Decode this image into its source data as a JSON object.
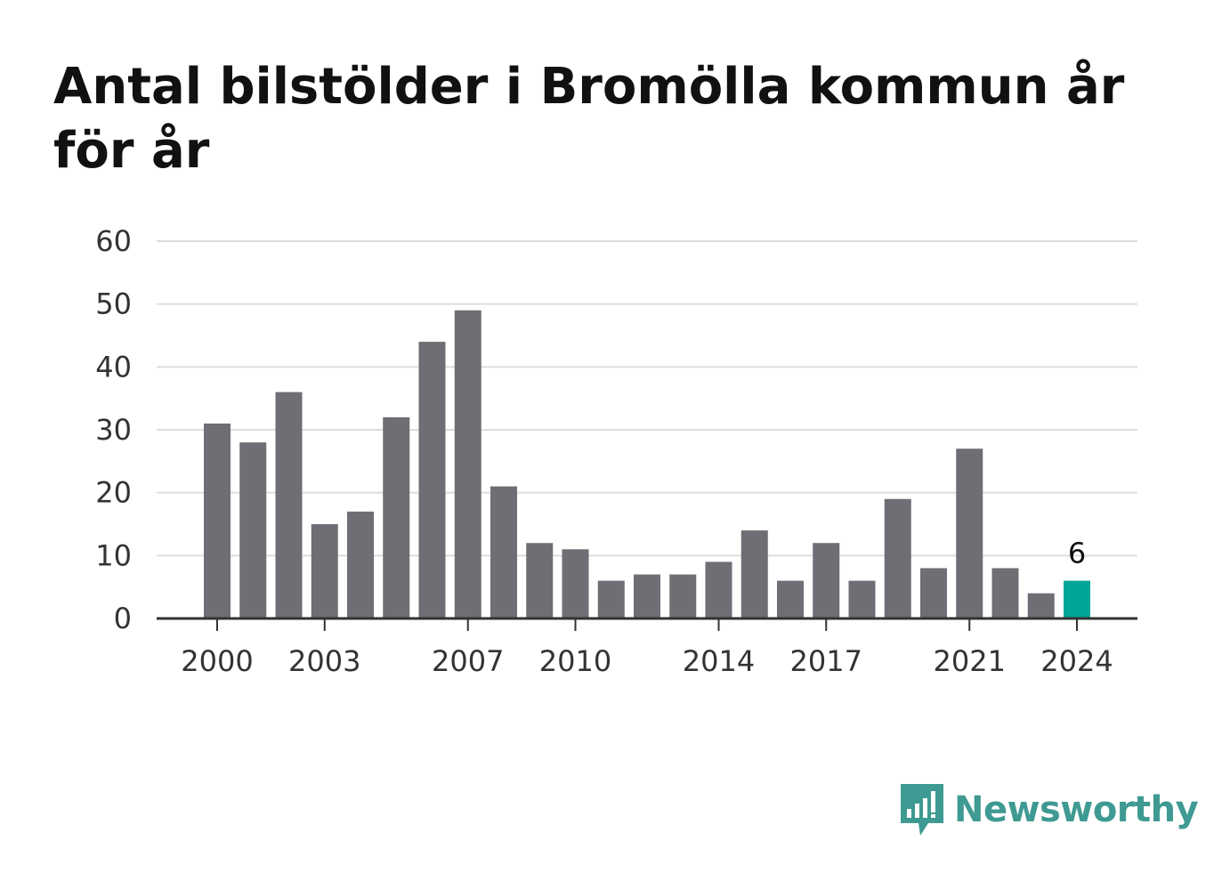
{
  "chart_data": {
    "type": "bar",
    "title": "Antal bilstölder i Bromölla kommun år för år",
    "xlabel": "",
    "ylabel": "",
    "ylim": [
      0,
      60
    ],
    "y_ticks": [
      "0",
      "10",
      "20",
      "30",
      "40",
      "50",
      "60"
    ],
    "categories": [
      "2000",
      "2001",
      "2002",
      "2003",
      "2004",
      "2005",
      "2006",
      "2007",
      "2008",
      "2009",
      "2010",
      "2011",
      "2012",
      "2013",
      "2014",
      "2015",
      "2016",
      "2017",
      "2018",
      "2019",
      "2020",
      "2021",
      "2022",
      "2023",
      "2024"
    ],
    "x_tick_labels": [
      "2000",
      "2003",
      "2007",
      "2010",
      "2014",
      "2017",
      "2021",
      "2024"
    ],
    "values": [
      31,
      28,
      36,
      15,
      17,
      32,
      44,
      49,
      21,
      12,
      11,
      6,
      7,
      7,
      9,
      14,
      6,
      12,
      6,
      19,
      8,
      27,
      8,
      4,
      6
    ],
    "highlight": {
      "category": "2024",
      "label": "6"
    },
    "grid": true,
    "legend": "none",
    "colors": {
      "bar": "#6f6e74",
      "highlight": "#00a597",
      "grid": "#dddddd",
      "axis": "#333333"
    }
  },
  "brand": {
    "name": "Newsworthy",
    "icon": "newsworthy-logo-icon",
    "color": "#3e9a92"
  }
}
